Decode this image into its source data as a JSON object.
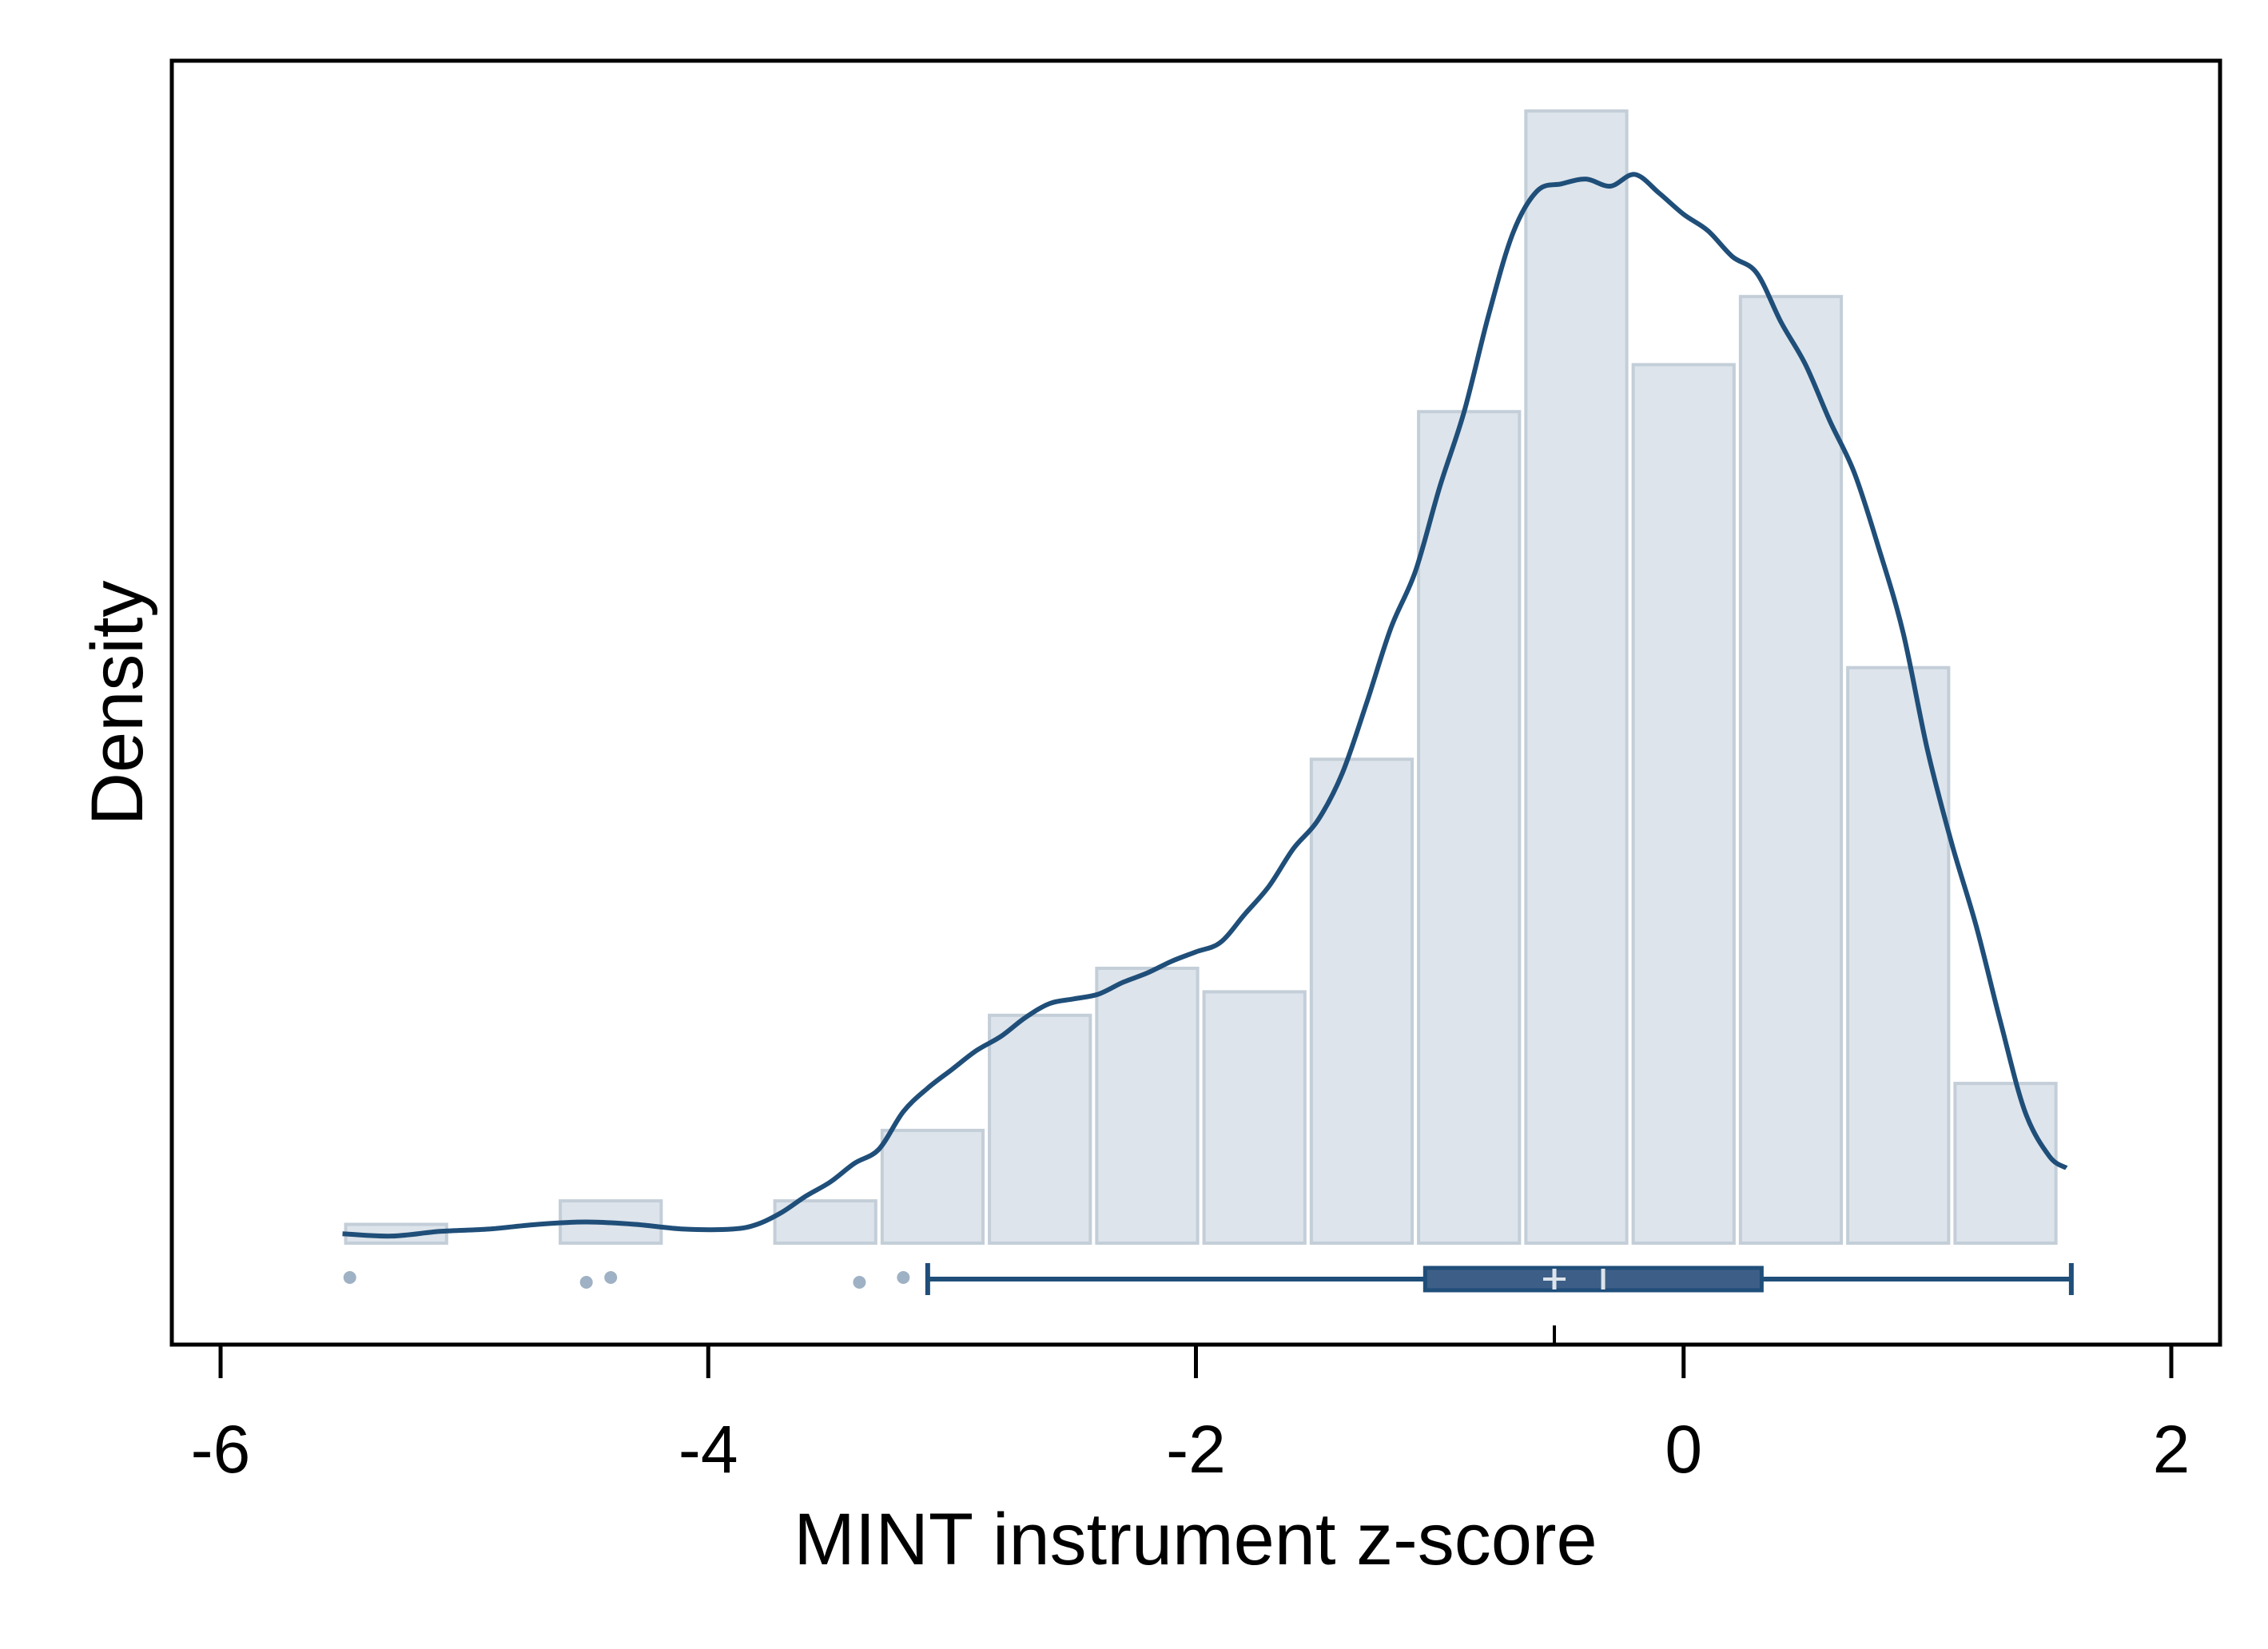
{
  "chart_data": {
    "type": "histogram",
    "title": "",
    "xlabel": "MINT instrument z-score",
    "ylabel": "Density",
    "xlim": [
      -6.2,
      2.2
    ],
    "xticks": [
      -6,
      -4,
      -2,
      0,
      2
    ],
    "xtick_labels": [
      "-6",
      "-4",
      "-2",
      "0",
      "2"
    ],
    "ylim": [
      0,
      0.5
    ],
    "grid": false,
    "legend": "none",
    "bins": [
      {
        "x0": -5.5,
        "x1": -5.06,
        "density": 0.008
      },
      {
        "x0": -5.06,
        "x1": -4.62,
        "density": 0.0
      },
      {
        "x0": -4.62,
        "x1": -4.18,
        "density": 0.018
      },
      {
        "x0": -4.18,
        "x1": -3.74,
        "density": 0.0
      },
      {
        "x0": -3.74,
        "x1": -3.3,
        "density": 0.018
      },
      {
        "x0": -3.3,
        "x1": -2.86,
        "density": 0.048
      },
      {
        "x0": -2.86,
        "x1": -2.42,
        "density": 0.097
      },
      {
        "x0": -2.42,
        "x1": -1.98,
        "density": 0.117
      },
      {
        "x0": -1.98,
        "x1": -1.54,
        "density": 0.107
      },
      {
        "x0": -1.54,
        "x1": -1.1,
        "density": 0.206
      },
      {
        "x0": -1.1,
        "x1": -0.66,
        "density": 0.354
      },
      {
        "x0": -0.66,
        "x1": -0.22,
        "density": 0.482
      },
      {
        "x0": -0.22,
        "x1": 0.22,
        "density": 0.374
      },
      {
        "x0": 0.22,
        "x1": 0.66,
        "density": 0.403
      },
      {
        "x0": 0.66,
        "x1": 1.1,
        "density": 0.245
      },
      {
        "x0": 1.1,
        "x1": 1.54,
        "density": 0.068
      }
    ],
    "kde": {
      "x": [
        -5.5,
        -5.3,
        -5.1,
        -4.9,
        -4.7,
        -4.5,
        -4.3,
        -4.1,
        -3.9,
        -3.8,
        -3.7,
        -3.6,
        -3.5,
        -3.4,
        -3.3,
        -3.2,
        -3.1,
        -3.0,
        -2.9,
        -2.8,
        -2.7,
        -2.6,
        -2.5,
        -2.4,
        -2.3,
        -2.2,
        -2.1,
        -2.0,
        -1.9,
        -1.8,
        -1.7,
        -1.6,
        -1.5,
        -1.4,
        -1.3,
        -1.2,
        -1.1,
        -1.0,
        -0.9,
        -0.8,
        -0.7,
        -0.6,
        -0.5,
        -0.4,
        -0.3,
        -0.2,
        -0.1,
        0.0,
        0.1,
        0.2,
        0.3,
        0.4,
        0.5,
        0.6,
        0.7,
        0.8,
        0.9,
        1.0,
        1.1,
        1.2,
        1.3,
        1.4,
        1.5,
        1.57
      ],
      "y": [
        0.004,
        0.003,
        0.005,
        0.006,
        0.008,
        0.009,
        0.008,
        0.006,
        0.006,
        0.008,
        0.013,
        0.02,
        0.026,
        0.034,
        0.04,
        0.056,
        0.066,
        0.074,
        0.082,
        0.088,
        0.096,
        0.102,
        0.104,
        0.106,
        0.111,
        0.115,
        0.12,
        0.124,
        0.128,
        0.14,
        0.152,
        0.168,
        0.18,
        0.2,
        0.23,
        0.262,
        0.286,
        0.322,
        0.354,
        0.395,
        0.43,
        0.448,
        0.451,
        0.453,
        0.45,
        0.455,
        0.447,
        0.438,
        0.431,
        0.42,
        0.413,
        0.392,
        0.374,
        0.35,
        0.328,
        0.296,
        0.26,
        0.21,
        0.17,
        0.135,
        0.094,
        0.056,
        0.037,
        0.032
      ]
    },
    "boxplot": {
      "whisker_low": -3.1,
      "q1": -1.06,
      "median": -0.53,
      "mean": -0.33,
      "q3": 0.32,
      "whisker_high": 1.59,
      "outliers": [
        -5.47,
        -4.5,
        -4.4,
        -3.38,
        -3.2
      ]
    },
    "colors": {
      "bar_fill": "#dde4eb",
      "bar_stroke": "#c3ced8",
      "line": "#1f4e79",
      "box_fill": "#3d5f87",
      "outlier": "#9fb1c4",
      "frame": "#000000"
    }
  }
}
